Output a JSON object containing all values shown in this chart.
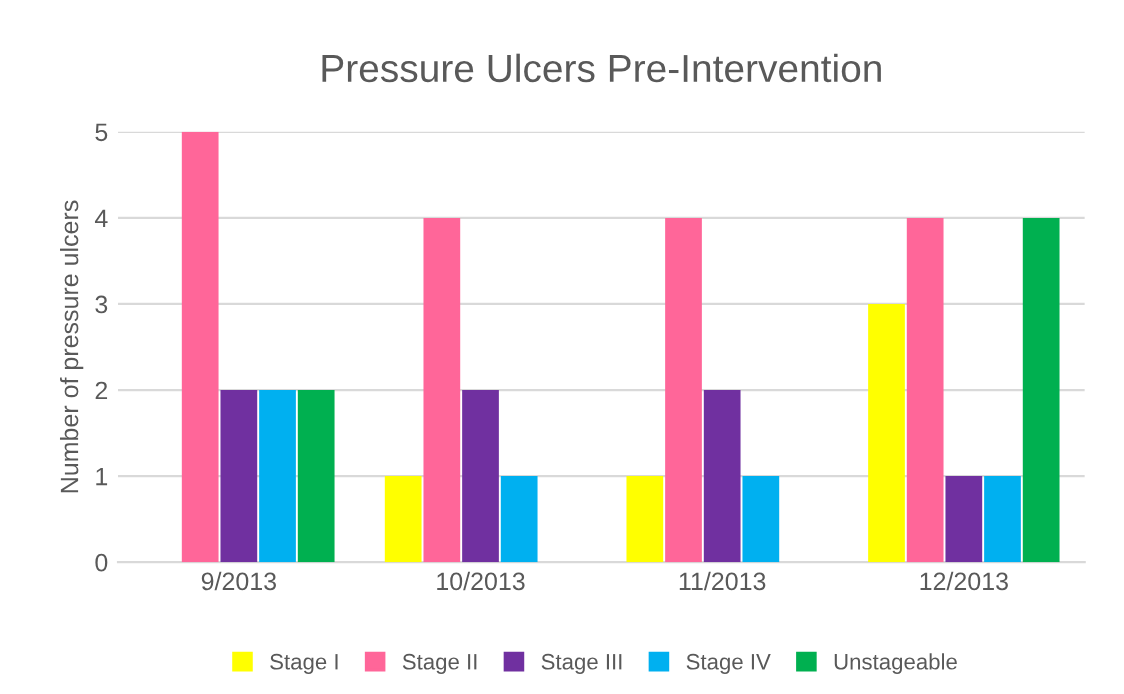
{
  "chart_data": {
    "type": "bar",
    "title": "Pressure Ulcers Pre-Intervention",
    "ylabel": "Number of pressure ulcers",
    "categories": [
      "9/2013",
      "10/2013",
      "11/2013",
      "12/2013"
    ],
    "series": [
      {
        "name": "Stage I",
        "color": "#ffff00",
        "values": [
          0,
          1,
          1,
          3
        ]
      },
      {
        "name": "Stage II",
        "color": "#ff6699",
        "values": [
          5,
          4,
          4,
          4
        ]
      },
      {
        "name": "Stage III",
        "color": "#7030a0",
        "values": [
          2,
          2,
          2,
          1
        ]
      },
      {
        "name": "Stage IV",
        "color": "#00b0f0",
        "values": [
          2,
          1,
          1,
          1
        ]
      },
      {
        "name": "Unstageable",
        "color": "#00b050",
        "values": [
          2,
          0,
          0,
          4
        ]
      }
    ],
    "ylim": [
      0,
      5
    ],
    "yticks": [
      0,
      1,
      2,
      3,
      4,
      5
    ],
    "grid": "y",
    "legend": "bottom"
  }
}
